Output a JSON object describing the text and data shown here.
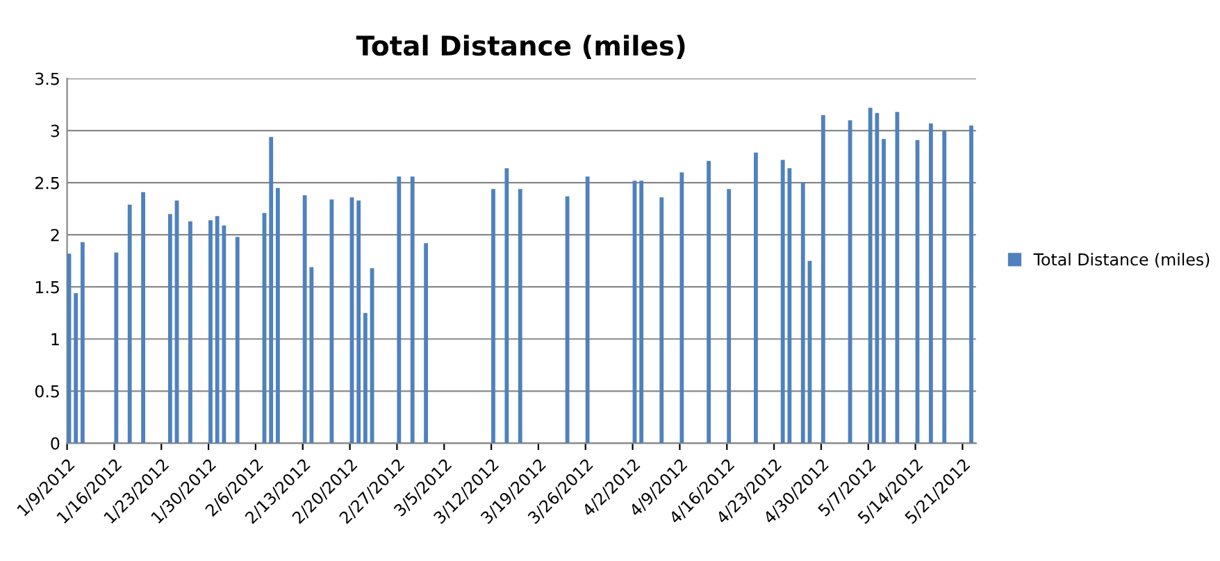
{
  "chart_data": {
    "type": "bar",
    "title": "Total Distance (miles)",
    "x": [
      "2012-01-09",
      "2012-01-10",
      "2012-01-11",
      "2012-01-16",
      "2012-01-18",
      "2012-01-20",
      "2012-01-24",
      "2012-01-25",
      "2012-01-27",
      "2012-01-30",
      "2012-01-31",
      "2012-02-01",
      "2012-02-03",
      "2012-02-07",
      "2012-02-08",
      "2012-02-09",
      "2012-02-13",
      "2012-02-14",
      "2012-02-17",
      "2012-02-20",
      "2012-02-21",
      "2012-02-22",
      "2012-02-23",
      "2012-02-27",
      "2012-02-29",
      "2012-03-02",
      "2012-03-12",
      "2012-03-14",
      "2012-03-16",
      "2012-03-23",
      "2012-03-26",
      "2012-04-02",
      "2012-04-03",
      "2012-04-06",
      "2012-04-09",
      "2012-04-13",
      "2012-04-16",
      "2012-04-20",
      "2012-04-24",
      "2012-04-25",
      "2012-04-27",
      "2012-04-28",
      "2012-04-30",
      "2012-05-04",
      "2012-05-07",
      "2012-05-08",
      "2012-05-09",
      "2012-05-11",
      "2012-05-14",
      "2012-05-16",
      "2012-05-18",
      "2012-05-22"
    ],
    "series": [
      {
        "name": "Total Distance (miles)",
        "color": "#4f81bd",
        "values": [
          1.82,
          1.44,
          1.93,
          1.83,
          2.29,
          2.41,
          2.2,
          2.33,
          2.13,
          2.14,
          2.18,
          2.09,
          1.98,
          2.21,
          2.94,
          2.45,
          2.38,
          1.69,
          2.34,
          2.36,
          2.33,
          1.25,
          1.68,
          2.56,
          2.56,
          1.92,
          2.44,
          2.64,
          2.44,
          2.37,
          2.56,
          2.52,
          2.52,
          2.36,
          2.6,
          2.71,
          2.44,
          2.79,
          2.72,
          2.64,
          2.5,
          1.75,
          3.15,
          3.1,
          3.22,
          3.17,
          2.92,
          3.18,
          2.91,
          3.07,
          3.0,
          3.05
        ]
      }
    ],
    "xlim": [
      "2012-01-09",
      "2012-05-23"
    ],
    "xticks": [
      {
        "value": "2012-01-09",
        "label": "1/9/2012"
      },
      {
        "value": "2012-01-16",
        "label": "1/16/2012"
      },
      {
        "value": "2012-01-23",
        "label": "1/23/2012"
      },
      {
        "value": "2012-01-30",
        "label": "1/30/2012"
      },
      {
        "value": "2012-02-06",
        "label": "2/6/2012"
      },
      {
        "value": "2012-02-13",
        "label": "2/13/2012"
      },
      {
        "value": "2012-02-20",
        "label": "2/20/2012"
      },
      {
        "value": "2012-02-27",
        "label": "2/27/2012"
      },
      {
        "value": "2012-03-05",
        "label": "3/5/2012"
      },
      {
        "value": "2012-03-12",
        "label": "3/12/2012"
      },
      {
        "value": "2012-03-19",
        "label": "3/19/2012"
      },
      {
        "value": "2012-03-26",
        "label": "3/26/2012"
      },
      {
        "value": "2012-04-02",
        "label": "4/2/2012"
      },
      {
        "value": "2012-04-09",
        "label": "4/9/2012"
      },
      {
        "value": "2012-04-16",
        "label": "4/16/2012"
      },
      {
        "value": "2012-04-23",
        "label": "4/23/2012"
      },
      {
        "value": "2012-04-30",
        "label": "4/30/2012"
      },
      {
        "value": "2012-05-07",
        "label": "5/7/2012"
      },
      {
        "value": "2012-05-14",
        "label": "5/14/2012"
      },
      {
        "value": "2012-05-21",
        "label": "5/21/2012"
      }
    ],
    "ylim": [
      0,
      3.5
    ],
    "yticks": [
      0,
      0.5,
      1,
      1.5,
      2,
      2.5,
      3,
      3.5
    ],
    "grid": "y",
    "legend": "right"
  }
}
